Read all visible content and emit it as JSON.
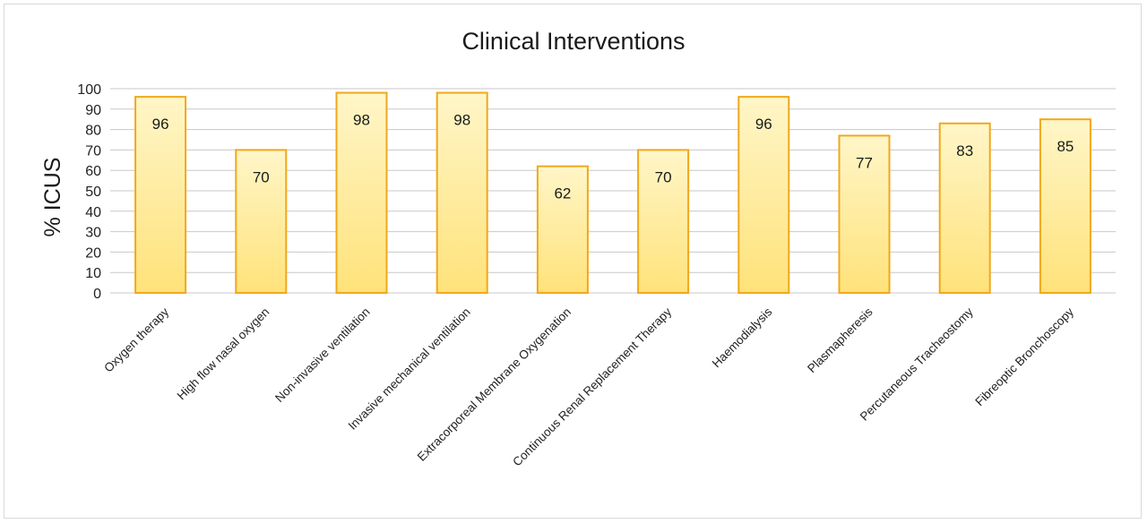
{
  "chart_data": {
    "type": "bar",
    "title": "Clinical Interventions",
    "xlabel": "",
    "ylabel": "% ICUS",
    "ylim": [
      0,
      100
    ],
    "yticks": [
      0,
      10,
      20,
      30,
      40,
      50,
      60,
      70,
      80,
      90,
      100
    ],
    "grid": true,
    "legend": "none",
    "categories": [
      "Oxygen therapy",
      "High flow nasal oxygen",
      "Non-invasive ventilation",
      "Invasive mechanical ventilation",
      "Extracorporeal Membrane Oxygenation",
      "Continuous Renal Replacement Therapy",
      "Haemodialysis",
      "Plasmapheresis",
      "Percutaneous Tracheostomy",
      "Fibreoptic Bronchoscopy"
    ],
    "values": [
      96,
      70,
      98,
      98,
      62,
      70,
      96,
      77,
      83,
      85
    ],
    "colors": {
      "bar_fill_top": "#fff6c8",
      "bar_fill_bottom": "#ffe27a",
      "bar_outline": "#f0a81c",
      "gridline": "#c8c8c8"
    }
  }
}
